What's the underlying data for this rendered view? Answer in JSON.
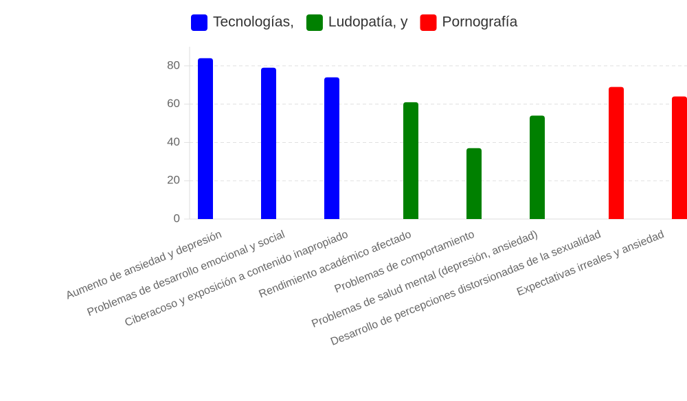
{
  "chart_data": {
    "type": "bar",
    "categories": [
      "Aumento de ansiedad y depresión",
      "Problemas de desarrollo emocional y social",
      "Ciberacoso y exposición a contenido inapropiado",
      "Rendimiento académico afectado",
      "Problemas de comportamiento",
      "Problemas de salud mental (depresión, ansiedad)",
      "Desarrollo de percepciones distorsionadas de la sexualidad",
      "Expectativas irreales y ansiedad"
    ],
    "series": [
      {
        "name": "Tecnologías,",
        "color": "#0000ff",
        "values": [
          84,
          79,
          74,
          null,
          null,
          null,
          null,
          null
        ]
      },
      {
        "name": "Ludopatía, y",
        "color": "#008000",
        "values": [
          null,
          null,
          null,
          61,
          37,
          54,
          null,
          null
        ]
      },
      {
        "name": "Pornografía",
        "color": "#ff0000",
        "values": [
          null,
          null,
          null,
          null,
          null,
          null,
          69,
          64
        ]
      }
    ],
    "ylim": [
      0,
      90
    ],
    "yticks": [
      0,
      20,
      40,
      60,
      80
    ],
    "grid": true,
    "legend": "top"
  }
}
